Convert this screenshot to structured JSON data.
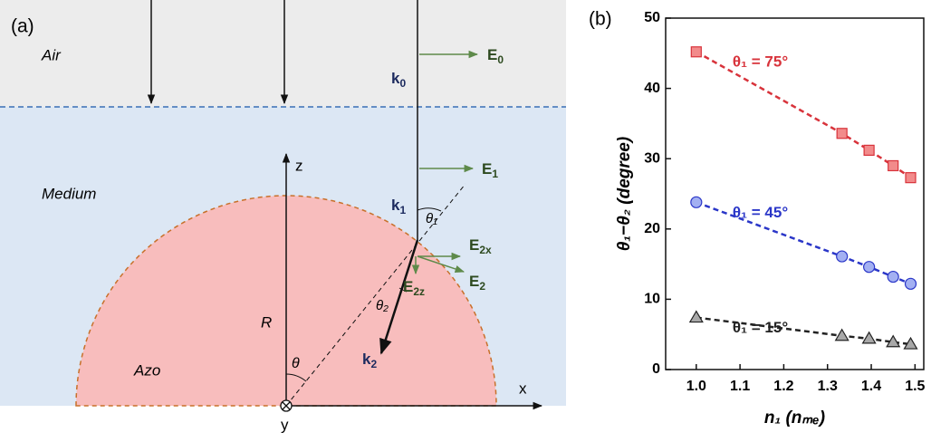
{
  "panel_a": {
    "label": "(a)",
    "regions": [
      "Air",
      "Medium",
      "Azo"
    ],
    "axes": [
      "z",
      "x",
      "y"
    ],
    "radius": "R",
    "angles": {
      "theta": "θ",
      "theta1": "θ₁",
      "theta2": "θ₂"
    },
    "vectors": {
      "k0": {
        "base": "k",
        "sub": "0"
      },
      "k1": {
        "base": "k",
        "sub": "1"
      },
      "k2": {
        "base": "k",
        "sub": "2"
      },
      "E0": {
        "base": "E",
        "sub": "0"
      },
      "E1": {
        "base": "E",
        "sub": "1"
      },
      "E2x": {
        "base": "E",
        "sub": "2x"
      },
      "E2": {
        "base": "E",
        "sub": "2"
      },
      "E2z": {
        "base": "E",
        "sub": "2z"
      }
    }
  },
  "chart_data": {
    "type": "line",
    "panel_label": "(b)",
    "x_label": "n₁ (nₘₑ)",
    "y_label": "θ₁−θ₂ (degree)",
    "xlim": [
      0.93,
      1.52
    ],
    "xticks": [
      {
        "value": 1.0,
        "label": "1.0"
      },
      {
        "value": 1.1,
        "label": "1.1"
      },
      {
        "value": 1.2,
        "label": "1.2"
      },
      {
        "value": 1.3,
        "label": "1.3"
      },
      {
        "value": 1.4,
        "label": "1.4"
      },
      {
        "value": 1.5,
        "label": "1.5"
      }
    ],
    "ylim": [
      0,
      50
    ],
    "yticks": [
      0,
      10,
      20,
      30,
      40,
      50
    ],
    "x": [
      1.0,
      1.333,
      1.395,
      1.45,
      1.49
    ],
    "series": [
      {
        "name": "θ₁ = 75°",
        "color": "#d8333b",
        "fill": "#f28b8b",
        "marker": "square",
        "values": [
          45.2,
          33.6,
          31.2,
          29.0,
          27.3
        ]
      },
      {
        "name": "θ₁ = 45°",
        "color": "#2a36c8",
        "fill": "#a3b0f2",
        "marker": "circle",
        "values": [
          23.8,
          16.1,
          14.6,
          13.2,
          12.2
        ]
      },
      {
        "name": "θ₁ = 15°",
        "color": "#222222",
        "fill": "#a8a8a8",
        "marker": "triangle",
        "values": [
          7.4,
          4.8,
          4.4,
          3.9,
          3.6
        ]
      }
    ]
  }
}
